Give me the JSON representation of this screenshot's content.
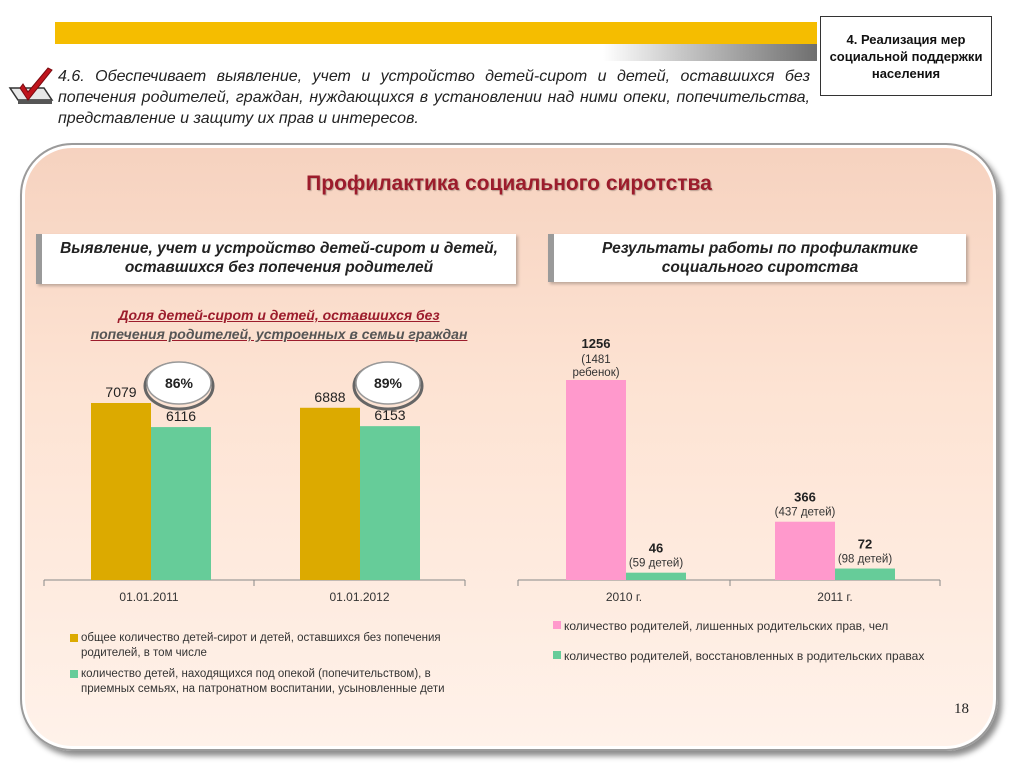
{
  "header": {
    "section_label": "4. Реализация мер социальной поддержки населения",
    "intro_text": "4.6. Обеспечивает выявление, учет и устройство детей-сирот и детей, оставшихся без попечения родителей, граждан, нуждающихся в установлении над ними опеки, попечительства, представление и защиту их прав и интересов."
  },
  "panel": {
    "title": "Профилактика социального сиротства",
    "left_subhead": "Выявление, учет и устройство детей-сирот и детей, оставшихся без попечения родителей",
    "right_subhead": "Результаты работы по профилактике социального сиротства",
    "left_chart_title_line1": "Доля детей-сирот и детей, оставшихся без",
    "left_chart_title_line2": "попечения родителей, устроенных в семьи граждан"
  },
  "page_number": "18",
  "colors": {
    "gold": "#dcaa00",
    "teal": "#66cc99",
    "pink": "#ff99cc",
    "title_red": "#9c1c2c",
    "yellow_bar": "#f5bd00"
  },
  "icons": [
    "checkbox-check-icon"
  ],
  "chart_data": [
    {
      "type": "bar",
      "title": "Доля детей-сирот и детей, оставшихся без попечения родителей, устроенных в семьи граждан",
      "categories": [
        "01.01.2011",
        "01.01.2012"
      ],
      "series": [
        {
          "name": "общее количество детей-сирот и детей, оставшихся без попечения родителей, в том числе",
          "color": "#dcaa00",
          "values": [
            7079,
            6888
          ]
        },
        {
          "name": "количество детей, находящихся под опекой (попечительством), в приемных семьях, на патронатном воспитании, усыновленные дети",
          "color": "#66cc99",
          "values": [
            6116,
            6153
          ]
        }
      ],
      "value_labels": [
        [
          "7079",
          "6888"
        ],
        [
          "6116",
          "6153"
        ]
      ],
      "annotations": [
        "86%",
        "89%"
      ],
      "ylim": [
        0,
        8000
      ],
      "legend_position": "bottom"
    },
    {
      "type": "bar",
      "categories": [
        "2010 г.",
        "2011 г."
      ],
      "series": [
        {
          "name": "количество родителей, лишенных родительских прав, чел",
          "color": "#ff99cc",
          "values": [
            1256,
            366
          ],
          "sublabels": [
            "(1481 ребенок)",
            "(437 детей)"
          ]
        },
        {
          "name": "количество родителей, восстановленных в родительских правах",
          "color": "#66cc99",
          "values": [
            46,
            72
          ],
          "sublabels": [
            "(59 детей)",
            "(98 детей)"
          ]
        }
      ],
      "value_labels": [
        [
          "1256",
          "366"
        ],
        [
          "46",
          "72"
        ]
      ],
      "legend_position": "bottom"
    }
  ]
}
